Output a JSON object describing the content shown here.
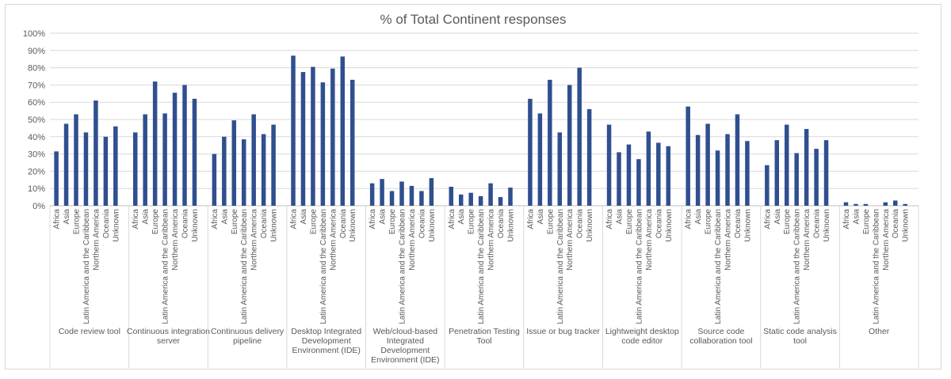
{
  "chart_data": {
    "type": "bar",
    "title": "% of Total Continent responses",
    "xlabel": "",
    "ylabel": "",
    "ylim": [
      0,
      100
    ],
    "yticks": [
      "0%",
      "10%",
      "20%",
      "30%",
      "40%",
      "50%",
      "60%",
      "70%",
      "80%",
      "90%",
      "100%"
    ],
    "grid": true,
    "legend": "none",
    "bar_color": "#2f4f8f",
    "categories": [
      "Africa",
      "Asia",
      "Europe",
      "Latin America and the Caribbean",
      "Northern America",
      "Oceania",
      "Unknown"
    ],
    "groups": [
      {
        "label": [
          "Code review tool"
        ],
        "values": [
          31.5,
          47.5,
          53,
          42.5,
          61,
          40,
          46
        ]
      },
      {
        "label": [
          "Continuous integration",
          "server"
        ],
        "values": [
          42.5,
          53,
          72,
          53.5,
          65.5,
          70,
          62
        ]
      },
      {
        "label": [
          "Continuous delivery",
          "pipeline"
        ],
        "values": [
          30,
          40,
          49.5,
          38.5,
          53,
          41.5,
          47
        ]
      },
      {
        "label": [
          "Desktop Integrated",
          "Development",
          "Environment (IDE)"
        ],
        "values": [
          87,
          77.5,
          80.5,
          71.5,
          79.5,
          86.5,
          73
        ]
      },
      {
        "label": [
          "Web/cloud-based",
          "Integrated",
          "Development",
          "Environment (IDE)"
        ],
        "values": [
          13,
          15.5,
          8.5,
          14,
          11.5,
          8.5,
          16
        ]
      },
      {
        "label": [
          "Penetration Testing",
          "Tool"
        ],
        "values": [
          11,
          6.5,
          7.5,
          5.5,
          13,
          5,
          10.5
        ]
      },
      {
        "label": [
          "Issue or bug tracker"
        ],
        "values": [
          62,
          53.5,
          73,
          42.5,
          70,
          80,
          56
        ]
      },
      {
        "label": [
          "Lightweight desktop",
          "code editor"
        ],
        "values": [
          47,
          31,
          35.5,
          27,
          43,
          36.5,
          34.5
        ]
      },
      {
        "label": [
          "Source code",
          "collaboration tool"
        ],
        "values": [
          57.5,
          41,
          47.5,
          32,
          41.5,
          53,
          37.5
        ]
      },
      {
        "label": [
          "Static code analysis",
          "tool"
        ],
        "values": [
          23.5,
          38,
          47,
          30.5,
          44.5,
          33,
          38
        ]
      },
      {
        "label": [
          "Other"
        ],
        "values": [
          2,
          1,
          1,
          0,
          2,
          3,
          1
        ]
      }
    ]
  }
}
